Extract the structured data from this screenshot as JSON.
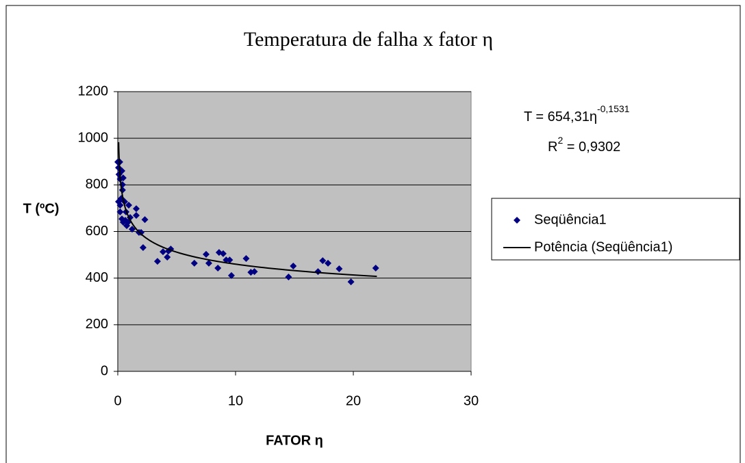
{
  "chart_data": {
    "type": "scatter",
    "title": "Temperatura de falha x fator η",
    "x_label": "FATOR η",
    "y_label": "T (ºC)",
    "series": [
      {
        "name": "Seqüência1",
        "color": "#000080",
        "x": [
          0,
          0.06,
          0.1,
          0.17,
          0.2,
          0.35,
          0.4,
          0.46,
          0.4,
          0.3,
          0.2,
          0.06,
          0.2,
          0.35,
          0.46,
          0.64,
          0.76,
          0.58,
          0.7,
          0.93,
          0.87,
          1.05,
          1.22,
          1.57,
          1.57,
          1.8,
          1.98,
          2.15,
          2.3,
          3.37,
          3.84,
          4.2,
          4.3,
          4.5,
          6.5,
          7.5,
          7.73,
          8.5,
          8.6,
          8.95,
          9.2,
          9.5,
          9.65,
          10.9,
          11.3,
          11.6,
          14.5,
          14.9,
          17.0,
          17.4,
          17.85,
          18.8,
          19.8,
          21.9
        ],
        "values": [
          898,
          874,
          845,
          898,
          825,
          860,
          801,
          830,
          778,
          742,
          713,
          728,
          684,
          654,
          640,
          648,
          625,
          728,
          684,
          713,
          640,
          660,
          610,
          698,
          669,
          596,
          596,
          531,
          651,
          472,
          513,
          490,
          516,
          525,
          464,
          502,
          464,
          443,
          510,
          505,
          478,
          478,
          411,
          484,
          425,
          428,
          405,
          452,
          428,
          475,
          464,
          440,
          384,
          443
        ]
      }
    ],
    "trendline": {
      "name": "Potência (Seqüência1)",
      "color": "#000000",
      "coefficient": 654.31,
      "exponent": -0.1531,
      "x_range": [
        0.07,
        22
      ]
    },
    "equation": {
      "lhs": "T = 654,31η",
      "exponent": "-0,1531",
      "r": "R",
      "r_power": "2",
      "r_value": " = 0,9302"
    },
    "xlim": [
      0,
      30
    ],
    "xticks": [
      0,
      10,
      20,
      30
    ],
    "ylim": [
      0,
      1200
    ],
    "yticks": [
      0,
      200,
      400,
      600,
      800,
      1000,
      1200
    ],
    "grid": true,
    "plot_background": "#c0c0c0",
    "legend": "right"
  }
}
